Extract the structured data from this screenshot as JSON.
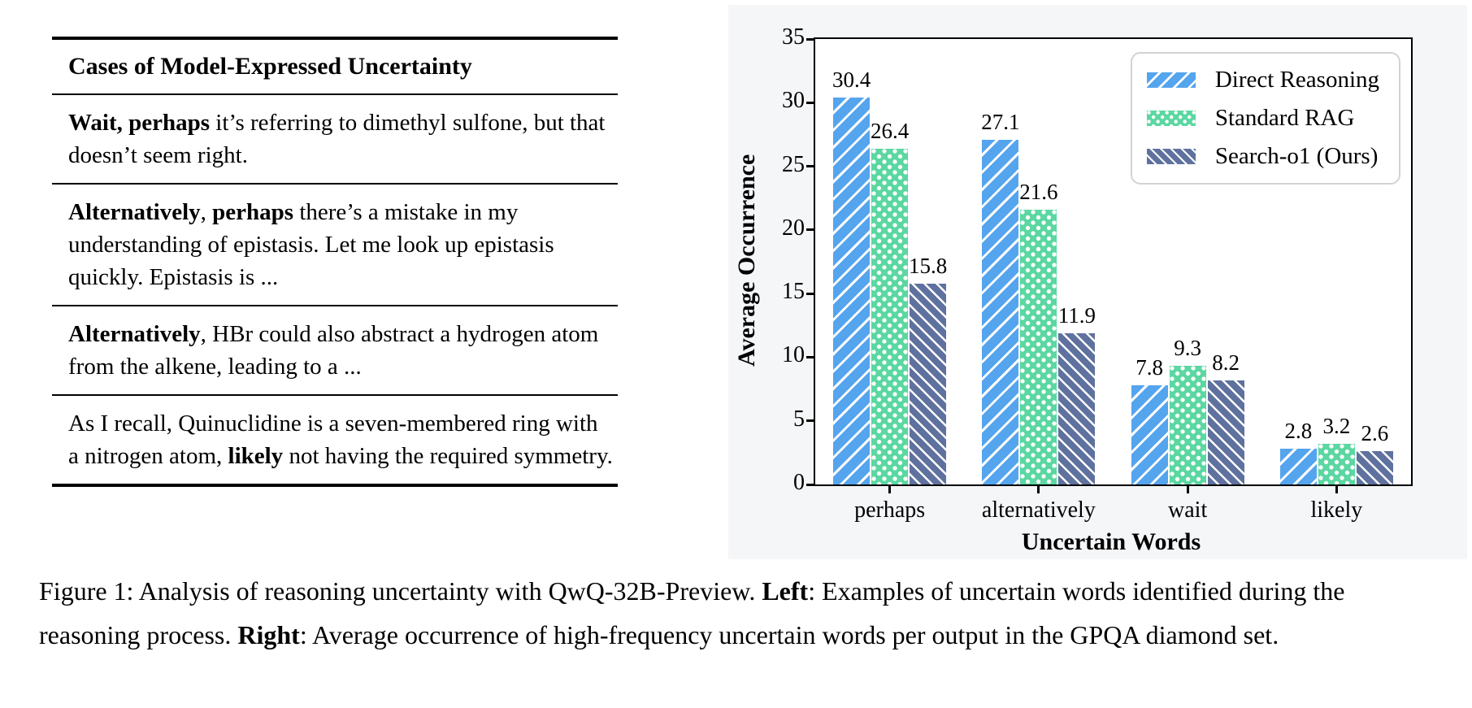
{
  "table": {
    "header": "Cases of Model-Expressed Uncertainty",
    "rows": [
      [
        {
          "bold": true,
          "text": "Wait, perhaps"
        },
        {
          "bold": false,
          "text": " it’s referring to dimethyl sulfone, but that doesn’t seem right."
        }
      ],
      [
        {
          "bold": true,
          "text": "Alternatively"
        },
        {
          "bold": false,
          "text": ", "
        },
        {
          "bold": true,
          "text": "perhaps"
        },
        {
          "bold": false,
          "text": " there’s a mistake in my understanding of epistasis. Let me look up epistasis quickly. Epistasis is ..."
        }
      ],
      [
        {
          "bold": true,
          "text": "Alternatively"
        },
        {
          "bold": false,
          "text": ", HBr could also abstract a hydrogen atom from the alkene, leading to a ..."
        }
      ],
      [
        {
          "bold": false,
          "text": "As I recall, Quinuclidine is a seven-membered ring with a nitrogen atom, "
        },
        {
          "bold": true,
          "text": "likely"
        },
        {
          "bold": false,
          "text": " not having the required symmetry."
        }
      ]
    ]
  },
  "chart_data": {
    "type": "bar",
    "categories": [
      "perhaps",
      "alternatively",
      "wait",
      "likely"
    ],
    "series": [
      {
        "name": "Direct Reasoning",
        "color": "#55a4ee",
        "hatch": "diagonal-forward",
        "values": [
          30.4,
          27.1,
          7.8,
          2.8
        ]
      },
      {
        "name": "Standard RAG",
        "color": "#5bd7a1",
        "hatch": "dots",
        "values": [
          26.4,
          21.6,
          9.3,
          3.2
        ]
      },
      {
        "name": "Search-o1 (Ours)",
        "color": "#5f719e",
        "hatch": "diagonal-back",
        "values": [
          15.8,
          11.9,
          8.2,
          2.6
        ]
      }
    ],
    "title": "",
    "xlabel": "Uncertain Words",
    "ylabel": "Average Occurrence",
    "ylim": [
      0,
      35
    ],
    "yticks": [
      0,
      5,
      10,
      15,
      20,
      25,
      30,
      35
    ],
    "legend_position": "top-right",
    "grid": false,
    "value_label_decimals": 1
  },
  "caption": {
    "segments": [
      {
        "bold": false,
        "text": "Figure 1: Analysis of reasoning uncertainty with QwQ-32B-Preview. "
      },
      {
        "bold": true,
        "text": "Left"
      },
      {
        "bold": false,
        "text": ": Examples of uncertain words identified during the reasoning process. "
      },
      {
        "bold": true,
        "text": "Right"
      },
      {
        "bold": false,
        "text": ": Average occurrence of high-frequency uncertain words per output in the GPQA diamond set."
      }
    ]
  }
}
